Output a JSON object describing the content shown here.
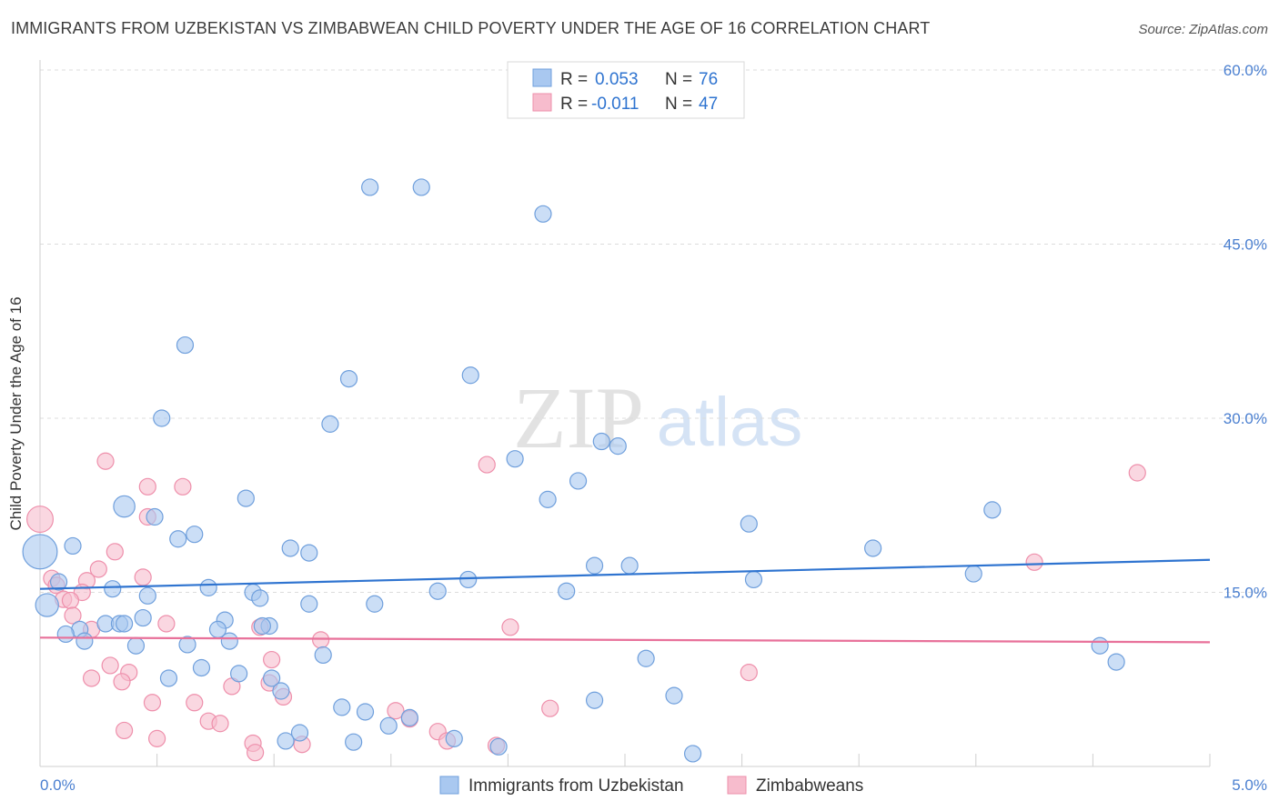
{
  "title": "IMMIGRANTS FROM UZBEKISTAN VS ZIMBABWEAN CHILD POVERTY UNDER THE AGE OF 16 CORRELATION CHART",
  "source": "Source: ZipAtlas.com",
  "watermark": {
    "zip": "ZIP",
    "atlas": "atlas"
  },
  "legend_top": {
    "rows": [
      {
        "r_label": "R =",
        "r_value": "0.053",
        "n_label": "N =",
        "n_value": "76"
      },
      {
        "r_label": "R =",
        "r_value": "-0.011",
        "n_label": "N =",
        "n_value": "47"
      }
    ]
  },
  "legend_bottom": {
    "items": [
      {
        "label": "Immigrants from Uzbekistan"
      },
      {
        "label": "Zimbabweans"
      }
    ]
  },
  "chart_data": {
    "type": "scatter",
    "title": "IMMIGRANTS FROM UZBEKISTAN VS ZIMBABWEAN CHILD POVERTY UNDER THE AGE OF 16 CORRELATION CHART",
    "xlabel": "",
    "ylabel": "Child Poverty Under the Age of 16",
    "xlim": [
      0,
      5
    ],
    "ylim": [
      0,
      60
    ],
    "x_ticks": [
      "0.0%",
      "5.0%"
    ],
    "y_ticks": [
      "15.0%",
      "30.0%",
      "45.0%",
      "60.0%"
    ],
    "y_tick_values": [
      15,
      30,
      45,
      60
    ],
    "grid": "horizontal dashed",
    "colors": {
      "blue_fill": "#a9c8f0",
      "blue_stroke": "#6f9fdc",
      "blue_line": "#2f74d0",
      "pink_fill": "#f7bccd",
      "pink_stroke": "#ee8fab",
      "pink_line": "#e8719a",
      "tick_text": "#4a7fd0"
    },
    "series": [
      {
        "name": "Immigrants from Uzbekistan",
        "trend": [
          [
            0,
            15.3
          ],
          [
            5,
            17.8
          ]
        ],
        "points": [
          [
            1.41,
            49.9,
            1
          ],
          [
            1.63,
            49.9,
            1
          ],
          [
            2.15,
            47.6,
            1
          ],
          [
            0.62,
            36.3,
            1
          ],
          [
            1.32,
            33.4,
            1
          ],
          [
            1.84,
            33.7,
            1
          ],
          [
            0.52,
            30.0,
            1
          ],
          [
            1.24,
            29.5,
            1
          ],
          [
            2.4,
            28.0,
            1
          ],
          [
            2.47,
            27.6,
            1
          ],
          [
            2.03,
            26.5,
            1
          ],
          [
            2.3,
            24.6,
            1
          ],
          [
            0.36,
            22.4,
            1.3
          ],
          [
            0.88,
            23.1,
            1
          ],
          [
            2.17,
            23.0,
            1
          ],
          [
            0.49,
            21.5,
            1
          ],
          [
            3.03,
            20.9,
            1
          ],
          [
            4.07,
            22.1,
            1
          ],
          [
            0.66,
            20.0,
            1
          ],
          [
            0.59,
            19.6,
            1
          ],
          [
            0.14,
            19.0,
            1
          ],
          [
            0.0,
            18.5,
            2.1
          ],
          [
            1.07,
            18.8,
            1
          ],
          [
            1.15,
            18.4,
            1
          ],
          [
            3.56,
            18.8,
            1
          ],
          [
            2.37,
            17.3,
            1
          ],
          [
            2.52,
            17.3,
            1
          ],
          [
            0.08,
            15.9,
            1
          ],
          [
            0.31,
            15.3,
            1
          ],
          [
            0.72,
            15.4,
            1
          ],
          [
            1.83,
            16.1,
            1
          ],
          [
            3.05,
            16.1,
            1
          ],
          [
            3.99,
            16.6,
            1
          ],
          [
            0.46,
            14.7,
            1
          ],
          [
            0.91,
            15.0,
            1
          ],
          [
            0.94,
            14.5,
            1
          ],
          [
            1.7,
            15.1,
            1
          ],
          [
            2.25,
            15.1,
            1
          ],
          [
            0.03,
            13.9,
            1.4
          ],
          [
            1.15,
            14.0,
            1
          ],
          [
            1.43,
            14.0,
            1
          ],
          [
            0.28,
            12.3,
            1
          ],
          [
            0.34,
            12.3,
            1
          ],
          [
            0.44,
            12.8,
            1
          ],
          [
            0.79,
            12.6,
            1
          ],
          [
            0.98,
            12.1,
            1
          ],
          [
            0.17,
            11.8,
            1
          ],
          [
            0.11,
            11.4,
            1
          ],
          [
            0.19,
            10.8,
            1
          ],
          [
            0.76,
            11.8,
            1
          ],
          [
            0.81,
            10.8,
            1
          ],
          [
            0.41,
            10.4,
            1
          ],
          [
            0.63,
            10.5,
            1
          ],
          [
            1.21,
            9.6,
            1
          ],
          [
            2.59,
            9.3,
            1
          ],
          [
            4.53,
            10.4,
            1
          ],
          [
            4.6,
            9.0,
            1
          ],
          [
            0.69,
            8.5,
            1
          ],
          [
            0.85,
            8.0,
            1
          ],
          [
            0.55,
            7.6,
            1
          ],
          [
            0.99,
            7.6,
            1
          ],
          [
            1.03,
            6.5,
            1
          ],
          [
            1.29,
            5.1,
            1
          ],
          [
            1.39,
            4.7,
            1
          ],
          [
            2.37,
            5.7,
            1
          ],
          [
            2.71,
            6.1,
            1
          ],
          [
            1.58,
            4.2,
            1
          ],
          [
            1.49,
            3.5,
            1
          ],
          [
            1.11,
            2.9,
            1
          ],
          [
            1.05,
            2.2,
            1
          ],
          [
            1.34,
            2.1,
            1
          ],
          [
            1.77,
            2.4,
            1
          ],
          [
            1.96,
            1.7,
            1
          ],
          [
            2.79,
            1.1,
            1
          ],
          [
            0.95,
            12.1,
            1
          ],
          [
            0.36,
            12.3,
            1
          ]
        ]
      },
      {
        "name": "Zimbabweans",
        "trend": [
          [
            0,
            11.1
          ],
          [
            5,
            10.7
          ]
        ],
        "points": [
          [
            0.0,
            21.3,
            1.6
          ],
          [
            0.28,
            26.3,
            1
          ],
          [
            0.46,
            21.5,
            1
          ],
          [
            0.46,
            24.1,
            1
          ],
          [
            0.61,
            24.1,
            1
          ],
          [
            0.32,
            18.5,
            1
          ],
          [
            0.25,
            17.0,
            1
          ],
          [
            0.05,
            16.2,
            1
          ],
          [
            0.07,
            15.6,
            1
          ],
          [
            0.2,
            16.0,
            1
          ],
          [
            0.44,
            16.3,
            1
          ],
          [
            0.18,
            15.0,
            1
          ],
          [
            0.1,
            14.4,
            1
          ],
          [
            0.13,
            14.3,
            1
          ],
          [
            0.14,
            13.0,
            1
          ],
          [
            0.22,
            11.8,
            1
          ],
          [
            0.54,
            12.3,
            1
          ],
          [
            0.94,
            12.0,
            1
          ],
          [
            1.91,
            26.0,
            1
          ],
          [
            4.69,
            25.3,
            1
          ],
          [
            4.25,
            17.6,
            1
          ],
          [
            2.01,
            12.0,
            1
          ],
          [
            1.2,
            10.9,
            1
          ],
          [
            0.99,
            9.2,
            1
          ],
          [
            0.3,
            8.7,
            1
          ],
          [
            0.38,
            8.1,
            1
          ],
          [
            0.22,
            7.6,
            1
          ],
          [
            0.35,
            7.3,
            1
          ],
          [
            0.82,
            6.9,
            1
          ],
          [
            0.98,
            7.2,
            1
          ],
          [
            1.04,
            6.0,
            1
          ],
          [
            0.48,
            5.5,
            1
          ],
          [
            0.66,
            5.5,
            1
          ],
          [
            1.52,
            4.8,
            1
          ],
          [
            2.18,
            5.0,
            1
          ],
          [
            3.03,
            8.1,
            1
          ],
          [
            0.72,
            3.9,
            1
          ],
          [
            0.77,
            3.7,
            1
          ],
          [
            1.58,
            4.1,
            1
          ],
          [
            0.36,
            3.1,
            1
          ],
          [
            0.5,
            2.4,
            1
          ],
          [
            0.91,
            2.0,
            1
          ],
          [
            1.12,
            1.9,
            1
          ],
          [
            0.92,
            1.2,
            1
          ],
          [
            1.7,
            3.0,
            1
          ],
          [
            1.74,
            2.2,
            1
          ],
          [
            1.95,
            1.8,
            1
          ]
        ]
      }
    ]
  }
}
